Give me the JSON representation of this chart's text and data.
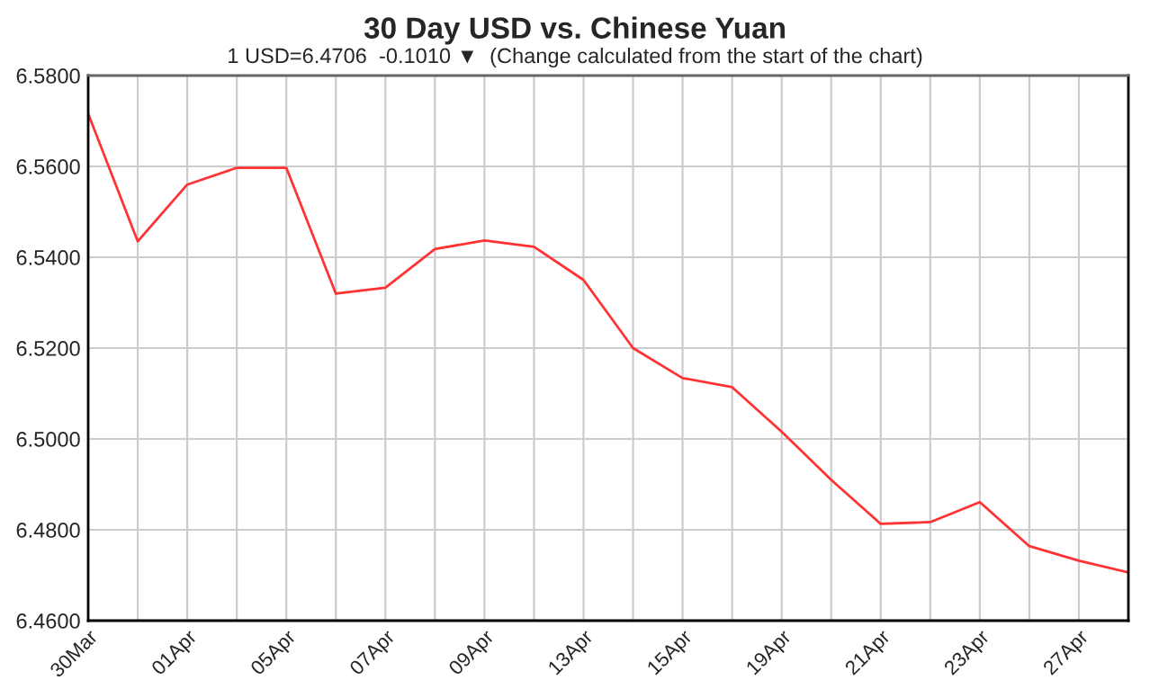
{
  "chart_data": {
    "type": "line",
    "title": "30 Day USD vs. Chinese Yuan",
    "subtitle": "1 USD=6.4706  -0.1010 ▼  (Change calculated from the start of the chart)",
    "categories": [
      "30Mar",
      null,
      "01Apr",
      null,
      "05Apr",
      null,
      "07Apr",
      null,
      "09Apr",
      null,
      "13Apr",
      null,
      "15Apr",
      null,
      "19Apr",
      null,
      "21Apr",
      null,
      "23Apr",
      null,
      "27Apr",
      null
    ],
    "series": [
      {
        "color": "#ff3333",
        "values": [
          6.5716,
          6.5435,
          6.556,
          6.5597,
          6.5597,
          6.532,
          6.5333,
          6.5418,
          6.5437,
          6.5423,
          6.535,
          6.52,
          6.5134,
          6.5114,
          6.5016,
          6.491,
          6.4813,
          6.4817,
          6.4861,
          6.4764,
          6.4732,
          6.4706
        ]
      }
    ],
    "ylim": [
      6.46,
      6.58
    ],
    "yticks": [
      {
        "value": 6.46,
        "label": "6.4600"
      },
      {
        "value": 6.48,
        "label": "6.4800"
      },
      {
        "value": 6.5,
        "label": "6.5000"
      },
      {
        "value": 6.52,
        "label": "6.5200"
      },
      {
        "value": 6.54,
        "label": "6.5400"
      },
      {
        "value": 6.56,
        "label": "6.5600"
      },
      {
        "value": 6.58,
        "label": "6.5800"
      }
    ],
    "grid": true,
    "marker": "none",
    "line_style": "solid"
  }
}
